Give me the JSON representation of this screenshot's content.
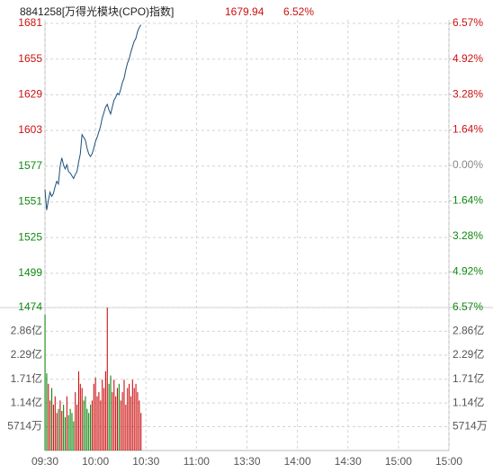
{
  "header": {
    "code": "8841258[万得光模块(CPO)指数]",
    "price": "1679.94",
    "change": "6.52%"
  },
  "chart_data": [
    {
      "type": "line",
      "x": [
        0,
        1,
        2,
        3,
        4,
        5,
        6,
        7,
        8,
        9,
        10,
        11,
        12,
        13,
        14,
        15,
        16,
        17,
        18,
        19,
        20,
        21,
        22,
        23,
        24,
        25,
        26,
        27,
        28,
        29,
        30,
        31,
        32,
        33,
        34,
        35,
        36,
        37,
        38,
        39,
        40,
        41,
        42,
        43,
        44,
        45,
        46,
        47,
        48,
        49,
        50,
        51,
        52,
        53,
        54,
        55,
        56,
        57
      ],
      "xlim": [
        0,
        240
      ],
      "series": [
        {
          "color": "#1b4f7a",
          "values": [
            1560,
            1545,
            1552,
            1558,
            1555,
            1557,
            1562,
            1566,
            1564,
            1577,
            1583,
            1578,
            1575,
            1578,
            1573,
            1572,
            1570,
            1568,
            1571,
            1573,
            1580,
            1586,
            1600,
            1598,
            1596,
            1590,
            1586,
            1584,
            1586,
            1590,
            1595,
            1598,
            1602,
            1606,
            1612,
            1616,
            1620,
            1622,
            1618,
            1615,
            1620,
            1625,
            1627,
            1630,
            1629,
            1633,
            1638,
            1641,
            1647,
            1652,
            1655,
            1660,
            1664,
            1668,
            1670,
            1675,
            1678,
            1679.94
          ]
        }
      ],
      "ylim": [
        1474,
        1681
      ],
      "yticks": [
        1474,
        1499,
        1525,
        1551,
        1577,
        1603,
        1629,
        1655,
        1681
      ],
      "y2lim": [
        -6.57,
        6.57
      ],
      "y2ticks": [
        {
          "value": -6.57,
          "label": "6.57%"
        },
        {
          "value": -4.92,
          "label": "4.92%"
        },
        {
          "value": -3.28,
          "label": "3.28%"
        },
        {
          "value": -1.64,
          "label": "1.64%"
        },
        {
          "value": 0,
          "label": "0.00%"
        },
        {
          "value": 1.64,
          "label": "1.64%"
        },
        {
          "value": 3.28,
          "label": "3.28%"
        },
        {
          "value": 4.92,
          "label": "4.92%"
        },
        {
          "value": 6.57,
          "label": "6.57%"
        }
      ],
      "up_color": "#cc1111",
      "down_color": "#118811",
      "flat_color": "#888888",
      "grid": true
    },
    {
      "type": "bar",
      "x": [
        0,
        1,
        2,
        3,
        4,
        5,
        6,
        7,
        8,
        9,
        10,
        11,
        12,
        13,
        14,
        15,
        16,
        17,
        18,
        19,
        20,
        21,
        22,
        23,
        24,
        25,
        26,
        27,
        28,
        29,
        30,
        31,
        32,
        33,
        34,
        35,
        36,
        37,
        38,
        39,
        40,
        41,
        42,
        43,
        44,
        45,
        46,
        47,
        48,
        49,
        50,
        51,
        52,
        53,
        54,
        55,
        56,
        57
      ],
      "xlim": [
        0,
        240
      ],
      "values": [
        3.26,
        1.85,
        1.6,
        1.2,
        1.5,
        1.1,
        1.3,
        0.9,
        1.0,
        1.2,
        0.95,
        1.1,
        0.8,
        1.3,
        0.85,
        1.0,
        0.9,
        0.7,
        1.4,
        1.1,
        1.9,
        1.6,
        1.5,
        1.2,
        1.3,
        1.0,
        0.9,
        1.1,
        1.2,
        1.6,
        1.75,
        1.3,
        1.4,
        1.2,
        1.7,
        1.5,
        1.9,
        3.43,
        1.6,
        1.8,
        1.4,
        1.7,
        1.3,
        1.5,
        1.6,
        1.2,
        1.4,
        1.7,
        1.1,
        1.5,
        1.6,
        1.3,
        1.7,
        1.5,
        1.6,
        1.4,
        1.2,
        0.9
      ],
      "ylim": [
        0,
        3.43
      ],
      "yticks": [
        {
          "value": 0.5714,
          "label": "5714万"
        },
        {
          "value": 1.14,
          "label": "1.14亿"
        },
        {
          "value": 1.71,
          "label": "1.71亿"
        },
        {
          "value": 2.29,
          "label": "2.29亿"
        },
        {
          "value": 2.86,
          "label": "2.86亿"
        }
      ],
      "xticks": [
        {
          "value": 0,
          "label": "09:30"
        },
        {
          "value": 30,
          "label": "10:00"
        },
        {
          "value": 60,
          "label": "10:30"
        },
        {
          "value": 90,
          "label": "11:00"
        },
        {
          "value": 120,
          "label": "13:30"
        },
        {
          "value": 150,
          "label": "14:00"
        },
        {
          "value": 180,
          "label": "14:30"
        },
        {
          "value": 210,
          "label": "15:00"
        },
        {
          "value": 240,
          "label": "15:00"
        }
      ],
      "up_color": "#cc1111",
      "down_color": "#118811",
      "label_color": "#555555",
      "grid": true
    }
  ]
}
